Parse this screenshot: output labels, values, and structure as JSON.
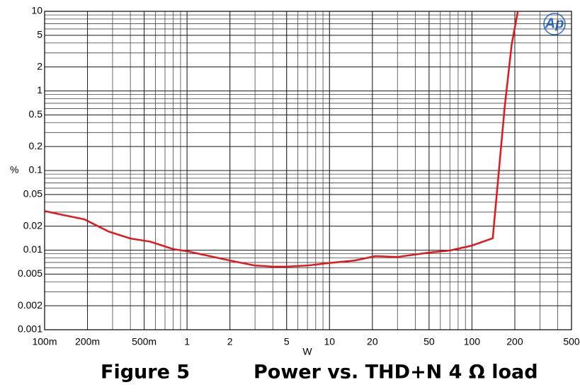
{
  "chart_data": {
    "type": "line",
    "figure": "Figure 5",
    "title": "Power vs. THD+N 4 Ω load",
    "logo": "Ap",
    "x_label": "W",
    "y_label": "%",
    "x_log": true,
    "y_log": true,
    "grid": true,
    "minor_grid": true,
    "xlim": [
      0.1,
      500
    ],
    "ylim": [
      0.001,
      10
    ],
    "xticks": [
      {
        "value": 0.1,
        "label": "100m"
      },
      {
        "value": 0.2,
        "label": "200m"
      },
      {
        "value": 0.5,
        "label": "500m"
      },
      1,
      2,
      5,
      10,
      20,
      50,
      100,
      200,
      500
    ],
    "yticks": [
      10,
      5,
      2,
      1,
      0.5,
      0.2,
      0.1,
      0.05,
      0.02,
      0.01,
      0.005,
      0.002,
      0.001
    ],
    "x": [
      0.1,
      0.13,
      0.19,
      0.28,
      0.4,
      0.55,
      0.8,
      1,
      2,
      3,
      4,
      5,
      7,
      10,
      15,
      21,
      30,
      50,
      70,
      100,
      140,
      170,
      190,
      210
    ],
    "series": [
      {
        "name": "THD+N",
        "color": "#e8141c",
        "values": [
          0.031,
          0.028,
          0.0244,
          0.0172,
          0.014,
          0.0128,
          0.0103,
          0.0097,
          0.0074,
          0.0064,
          0.0062,
          0.0062,
          0.0064,
          0.0069,
          0.0074,
          0.0084,
          0.0082,
          0.0093,
          0.0099,
          0.0114,
          0.0141,
          0.64,
          3.8,
          10
        ]
      }
    ]
  }
}
